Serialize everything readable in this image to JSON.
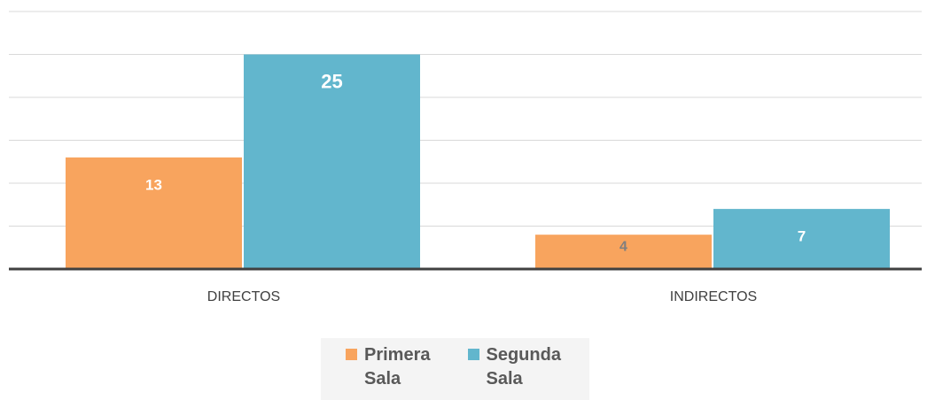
{
  "chart_data": {
    "type": "bar",
    "categories": [
      "DIRECTOS",
      "INDIRECTOS"
    ],
    "series": [
      {
        "name": "Primera Sala",
        "color": "#f8a45e",
        "values": [
          13,
          4
        ]
      },
      {
        "name": "Segunda Sala",
        "color": "#62b6cd",
        "values": [
          25,
          7
        ]
      }
    ],
    "ylim": [
      0,
      30
    ],
    "yticks": [
      0,
      5,
      10,
      15,
      20,
      25,
      30
    ],
    "grid": true,
    "legend": "bottom"
  }
}
